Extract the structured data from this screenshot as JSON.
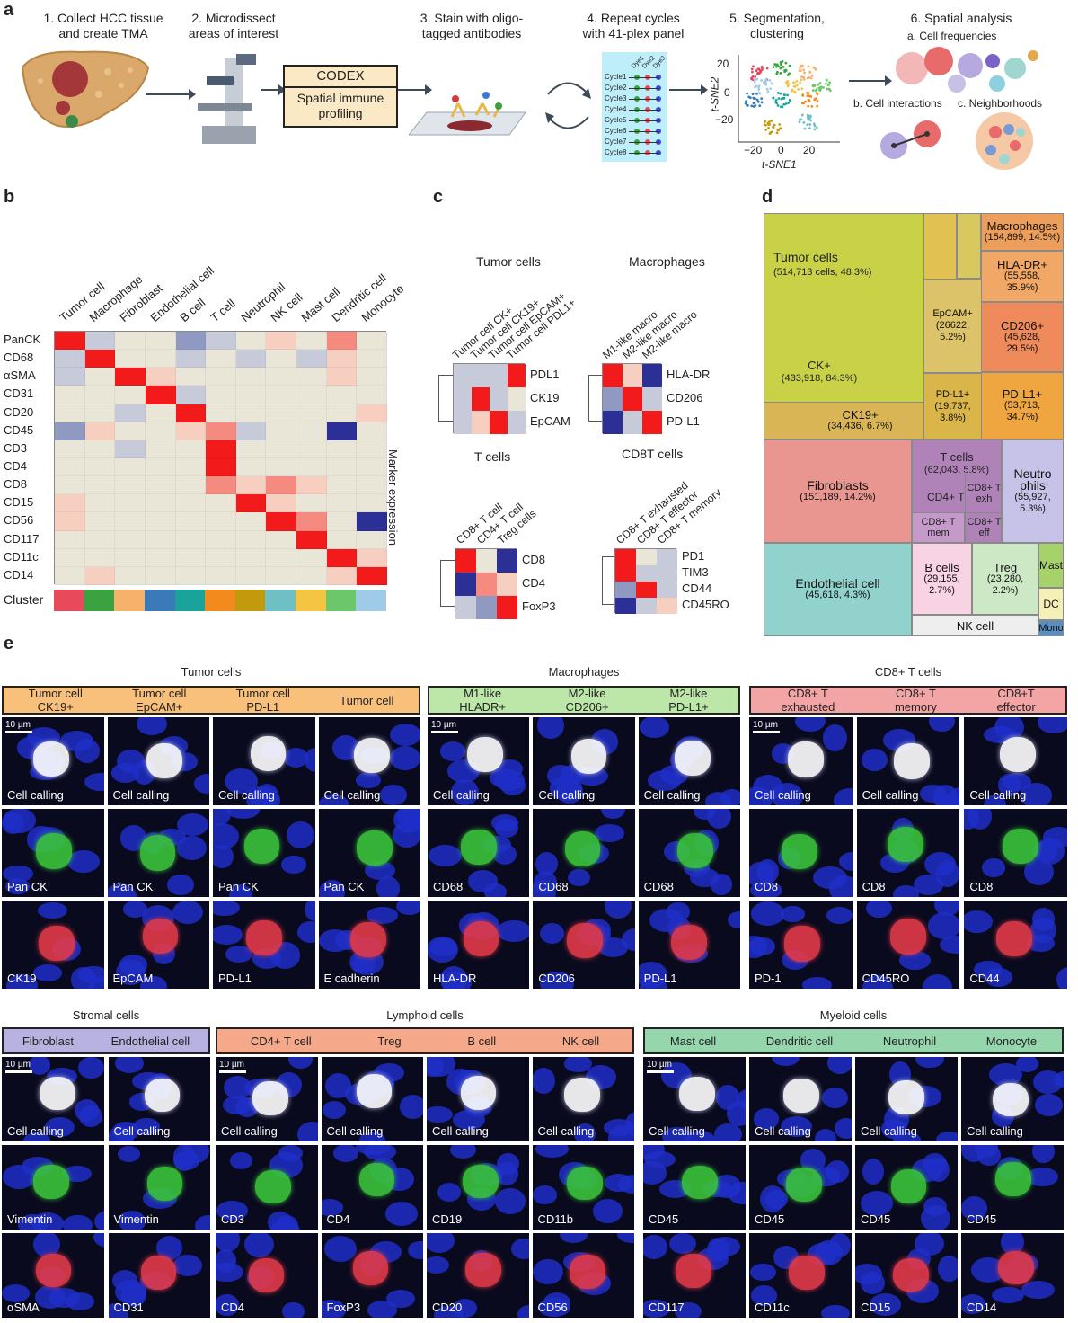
{
  "panel_labels": {
    "a": "a",
    "b": "b",
    "c": "c",
    "d": "d",
    "e": "e"
  },
  "panel_a": {
    "steps": [
      {
        "l1": "1. Collect HCC tissue",
        "l2": "and create TMA"
      },
      {
        "l1": "2. Microdissect",
        "l2": "areas of interest"
      },
      {
        "l1": "3. Stain with oligo-",
        "l2": "tagged antibodies"
      },
      {
        "l1": "4. Repeat cycles",
        "l2": "with 41-plex panel"
      },
      {
        "l1": "5. Segmentation,",
        "l2": "clustering"
      },
      {
        "l1": "6. Spatial analysis",
        "l2": ""
      }
    ],
    "codex_title": "CODEX",
    "codex_sub1": "Spatial immune",
    "codex_sub2": "profiling",
    "cycles": [
      "Cycle1",
      "Cycle2",
      "Cycle3",
      "Cycle4",
      "Cycle5",
      "Cycle6",
      "Cycle7",
      "Cycle8"
    ],
    "dyes": [
      "Dye1",
      "Dye2",
      "Dye3"
    ],
    "tsne_x": "t-SNE1",
    "tsne_y": "t-SNE2",
    "tsne_xticks": [
      "−20",
      "0",
      "20"
    ],
    "tsne_yticks": [
      "20",
      "0",
      "−20"
    ],
    "analysis": {
      "a": "a. Cell frequencies",
      "b": "b. Cell interactions",
      "c": "c. Neighborhoods"
    }
  },
  "panel_b": {
    "columns": [
      "Tumor cell",
      "Macrophage",
      "Fibroblast",
      "Endothelial cell",
      "B cell",
      "T cell",
      "Neutrophil",
      "NK cell",
      "Mast cell",
      "Dendritic cell",
      "Monocyte"
    ],
    "rows": [
      "PanCK",
      "CD68",
      "αSMA",
      "CD31",
      "CD20",
      "CD45",
      "CD3",
      "CD4",
      "CD8",
      "CD15",
      "CD56",
      "CD117",
      "CD11c",
      "CD14"
    ],
    "side_label": "Marker expression",
    "cluster_label": "Cluster",
    "cluster_colors": [
      "#e8495b",
      "#3aa33f",
      "#f6b26b",
      "#3a7ab8",
      "#1aa39a",
      "#f28a1e",
      "#c39a0e",
      "#6fc0c4",
      "#f4c542",
      "#6cc76a",
      "#9fcbe9"
    ],
    "matrix": [
      [
        3,
        -1,
        0,
        0,
        -2,
        -1,
        0,
        1,
        0,
        2,
        0
      ],
      [
        -1,
        3,
        0,
        0,
        -1,
        0,
        -1,
        0,
        -1,
        1,
        0
      ],
      [
        -1,
        0,
        3,
        1,
        0,
        0,
        0,
        0,
        0,
        1,
        0
      ],
      [
        0,
        0,
        0,
        3,
        -1,
        0,
        0,
        0,
        0,
        0,
        0
      ],
      [
        0,
        0,
        -1,
        0,
        3,
        0,
        0,
        0,
        0,
        0,
        1
      ],
      [
        -2,
        1,
        0,
        0,
        1,
        2,
        -1,
        0,
        0,
        -3,
        0
      ],
      [
        0,
        0,
        -1,
        0,
        0,
        3,
        0,
        0,
        0,
        0,
        0
      ],
      [
        0,
        0,
        0,
        0,
        0,
        3,
        0,
        0,
        0,
        0,
        0
      ],
      [
        0,
        0,
        0,
        0,
        0,
        2,
        1,
        2,
        1,
        0,
        0
      ],
      [
        1,
        0,
        0,
        0,
        0,
        0,
        3,
        1,
        0,
        0,
        0
      ],
      [
        1,
        0,
        0,
        0,
        0,
        0,
        0,
        3,
        2,
        0,
        -3
      ],
      [
        0,
        0,
        0,
        0,
        0,
        0,
        0,
        0,
        3,
        0,
        0
      ],
      [
        0,
        0,
        0,
        0,
        0,
        0,
        0,
        0,
        0,
        3,
        1
      ],
      [
        0,
        1,
        0,
        0,
        0,
        0,
        0,
        0,
        0,
        1,
        3
      ]
    ]
  },
  "panel_c": {
    "tumor": {
      "title": "Tumor cells",
      "cols": [
        "Tumor cell CK+",
        "Tumor cell CK19+",
        "Tumor cell EpCAM+",
        "Tumor cell PDL1+"
      ],
      "rows": [
        "PDL1",
        "CK19",
        "EpCAM"
      ],
      "matrix": [
        [
          -1,
          -1,
          -1,
          3
        ],
        [
          -1,
          3,
          -1,
          0
        ],
        [
          -1,
          1,
          3,
          -1
        ]
      ]
    },
    "macro": {
      "title": "Macrophages",
      "cols": [
        "M1-like macro",
        "M2-like macro",
        "M2-like macro"
      ],
      "rows": [
        "HLA-DR",
        "CD206",
        "PD-L1"
      ],
      "matrix": [
        [
          3,
          1,
          -3
        ],
        [
          -2,
          3,
          -1
        ],
        [
          -3,
          -1,
          3
        ]
      ]
    },
    "tcells": {
      "title": "T cells",
      "cols": [
        "CD8+ T cell",
        "CD4+ T cell",
        "Treg cells"
      ],
      "rows": [
        "CD8",
        "CD4",
        "FoxP3"
      ],
      "matrix": [
        [
          3,
          0,
          -3
        ],
        [
          -3,
          2,
          1
        ],
        [
          -1,
          -2,
          3
        ]
      ]
    },
    "cd8": {
      "title": "CD8T cells",
      "cols": [
        "CD8+ T exhausted",
        "CD8+ T effector",
        "CD8+ T memory"
      ],
      "rows": [
        "PD1",
        "TIM3",
        "CD44",
        "CD45RO"
      ],
      "matrix": [
        [
          3,
          0,
          -1
        ],
        [
          3,
          -1,
          -1
        ],
        [
          -2,
          3,
          -1
        ],
        [
          -3,
          -1,
          1
        ]
      ]
    }
  },
  "panel_d": {
    "tumor": {
      "name": "Tumor cells",
      "stat": "(514,713 cells, 48.3%)"
    },
    "ck": {
      "name": "CK+",
      "stat": "(433,918, 84.3%)"
    },
    "epcam": {
      "name": "EpCAM+",
      "stat1": "(26622,",
      "stat2": "5.2%)"
    },
    "pdl1t": {
      "name": "PD-L1+",
      "stat1": "(19,737,",
      "stat2": "3.8%)"
    },
    "ck19": {
      "name": "CK19+",
      "stat": "(34,436, 6.7%)"
    },
    "macro": {
      "name": "Macrophages",
      "stat": "(154,899, 14.5%)"
    },
    "hladr": {
      "name": "HLA-DR+",
      "stat1": "(55,558,",
      "stat2": "35.9%)"
    },
    "cd206": {
      "name": "CD206+",
      "stat1": "(45,628,",
      "stat2": "29.5%)"
    },
    "pdl1m": {
      "name": "PD-L1+",
      "stat1": "(53,713,",
      "stat2": "34.7%)"
    },
    "fibro": {
      "name": "Fibroblasts",
      "stat": "(151,189, 14.2%)"
    },
    "tcells": {
      "name": "T cells",
      "stat": "(62,043, 5.8%)"
    },
    "cd4t": "CD4+ T",
    "cd8exh1": "CD8+ T",
    "cd8exh2": "exh",
    "cd8mem1": "CD8+ T",
    "cd8mem2": "mem",
    "cd8eff1": "CD8+ T",
    "cd8eff2": "eff",
    "neutro": {
      "n1": "Neutro",
      "n2": "phils",
      "stat1": "(55,927,",
      "stat2": "5.3%)"
    },
    "endo": {
      "name": "Endothelial cell",
      "stat": "(45,618, 4.3%)"
    },
    "bcells": {
      "name": "B cells",
      "stat1": "(29,155,",
      "stat2": "2.7%)"
    },
    "treg": {
      "name": "Treg",
      "stat1": "(23,280,",
      "stat2": "2.2%)"
    },
    "nk": "NK cell",
    "mast": "Mast",
    "dc": "DC",
    "mono": "Mono"
  },
  "panel_e": {
    "scale": "10 µm",
    "groups": [
      {
        "title": "Tumor cells",
        "cols": [
          [
            "Tumor cell",
            "CK19+"
          ],
          [
            "Tumor cell",
            "EpCAM+"
          ],
          [
            "Tumor cell",
            "PD-L1"
          ],
          [
            "Tumor cell",
            ""
          ]
        ],
        "rows": [
          [
            "Cell calling",
            "Cell calling",
            "Cell calling",
            "Cell calling"
          ],
          [
            "Pan CK",
            "Pan CK",
            "Pan CK",
            "Pan CK"
          ],
          [
            "CK19",
            "EpCAM",
            "PD-L1",
            "E cadherin"
          ]
        ]
      },
      {
        "title": "Macrophages",
        "cols": [
          [
            "M1-like",
            "HLADR+"
          ],
          [
            "M2-like",
            "CD206+"
          ],
          [
            "M2-like",
            "PD-L1+"
          ]
        ],
        "rows": [
          [
            "Cell calling",
            "Cell calling",
            "Cell calling"
          ],
          [
            "CD68",
            "CD68",
            "CD68"
          ],
          [
            "HLA-DR",
            "CD206",
            "PD-L1"
          ]
        ]
      },
      {
        "title": "CD8+ T cells",
        "cols": [
          [
            "CD8+ T",
            "exhausted"
          ],
          [
            "CD8+ T",
            "memory"
          ],
          [
            "CD8+T",
            "effector"
          ]
        ],
        "rows": [
          [
            "Cell calling",
            "Cell calling",
            "Cell calling"
          ],
          [
            "CD8",
            "CD8",
            "CD8"
          ],
          [
            "PD-1",
            "CD45RO",
            "CD44"
          ]
        ]
      },
      {
        "title": "Stromal cells",
        "cols": [
          [
            "Fibroblast",
            ""
          ],
          [
            "Endothelial cell",
            ""
          ]
        ],
        "rows": [
          [
            "Cell calling",
            "Cell calling"
          ],
          [
            "Vimentin",
            "Vimentin"
          ],
          [
            "αSMA",
            "CD31"
          ]
        ]
      },
      {
        "title": "Lymphoid cells",
        "cols": [
          [
            "CD4+ T cell",
            ""
          ],
          [
            "Treg",
            ""
          ],
          [
            "B cell",
            ""
          ],
          [
            "NK cell",
            ""
          ]
        ],
        "rows": [
          [
            "Cell calling",
            "Cell calling",
            "Cell calling",
            "Cell calling"
          ],
          [
            "CD3",
            "CD4",
            "CD19",
            "CD11b"
          ],
          [
            "CD4",
            "FoxP3",
            "CD20",
            "CD56"
          ]
        ]
      },
      {
        "title": "Myeloid cells",
        "cols": [
          [
            "Mast cell",
            ""
          ],
          [
            "Dendritic cell",
            ""
          ],
          [
            "Neutrophil",
            ""
          ],
          [
            "Monocyte",
            ""
          ]
        ],
        "rows": [
          [
            "Cell calling",
            "Cell calling",
            "Cell calling",
            "Cell calling"
          ],
          [
            "CD45",
            "CD45",
            "CD45",
            "CD45"
          ],
          [
            "CD117",
            "CD11c",
            "CD15",
            "CD14"
          ]
        ]
      }
    ]
  }
}
